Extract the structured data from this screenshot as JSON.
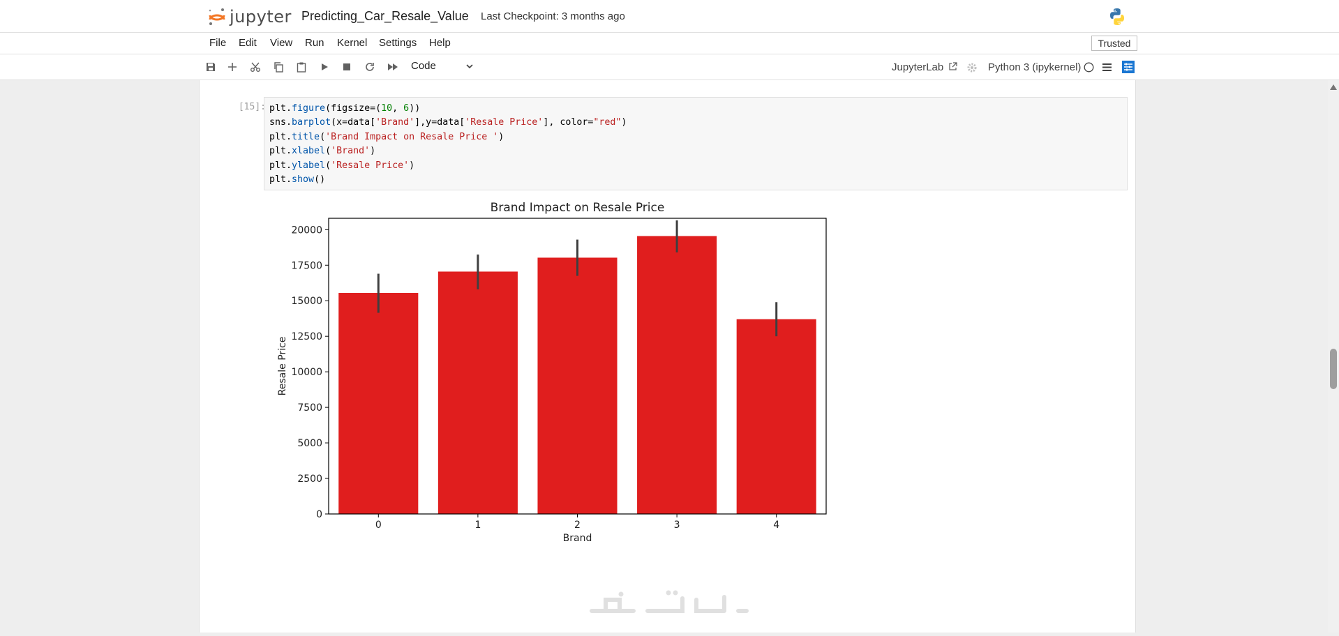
{
  "header": {
    "logo_text": "jupyter",
    "notebook_title": "Predicting_Car_Resale_Value",
    "checkpoint": "Last Checkpoint: 3 months ago"
  },
  "menu": {
    "items": [
      "File",
      "Edit",
      "View",
      "Run",
      "Kernel",
      "Settings",
      "Help"
    ],
    "trusted_label": "Trusted"
  },
  "toolbar": {
    "buttons": [
      "save-icon",
      "add-icon",
      "cut-icon",
      "copy-icon",
      "paste-icon",
      "run-icon",
      "stop-icon",
      "restart-icon",
      "fast-forward-icon"
    ],
    "cell_type": "Code",
    "jupyterlab_label": "JupyterLab",
    "kernel_label": "Python 3 (ipykernel)"
  },
  "cell": {
    "prompt": "[15]:",
    "code_lines": [
      "plt.figure(figsize=(10, 6))",
      "sns.barplot(x=data['Brand'],y=data['Resale Price'], color=\"red\")",
      "plt.title('Brand Impact on Resale Price ')",
      "plt.xlabel('Brand')",
      "plt.ylabel('Resale Price')",
      "plt.show()"
    ]
  },
  "chart_data": {
    "type": "bar",
    "title": "Brand Impact on Resale Price",
    "xlabel": "Brand",
    "ylabel": "Resale Price",
    "categories": [
      "0",
      "1",
      "2",
      "3",
      "4"
    ],
    "values": [
      15550,
      17050,
      18030,
      19550,
      13700
    ],
    "error_low": [
      14150,
      15800,
      16750,
      18400,
      12500
    ],
    "error_high": [
      16900,
      18250,
      19300,
      20650,
      14900
    ],
    "ylim": [
      0,
      20800
    ],
    "yticks": [
      0,
      2500,
      5000,
      7500,
      10000,
      12500,
      15000,
      17500,
      20000
    ],
    "ytick_labels": [
      "0",
      "2500",
      "5000",
      "7500",
      "10000",
      "12500",
      "15000",
      "17500",
      "20000"
    ],
    "bar_color": "#e01e1e",
    "errorbar_color": "#3f3f3f",
    "grid": false
  },
  "colors": {
    "accent": "#1976d2",
    "brand_orange": "#f37726"
  }
}
